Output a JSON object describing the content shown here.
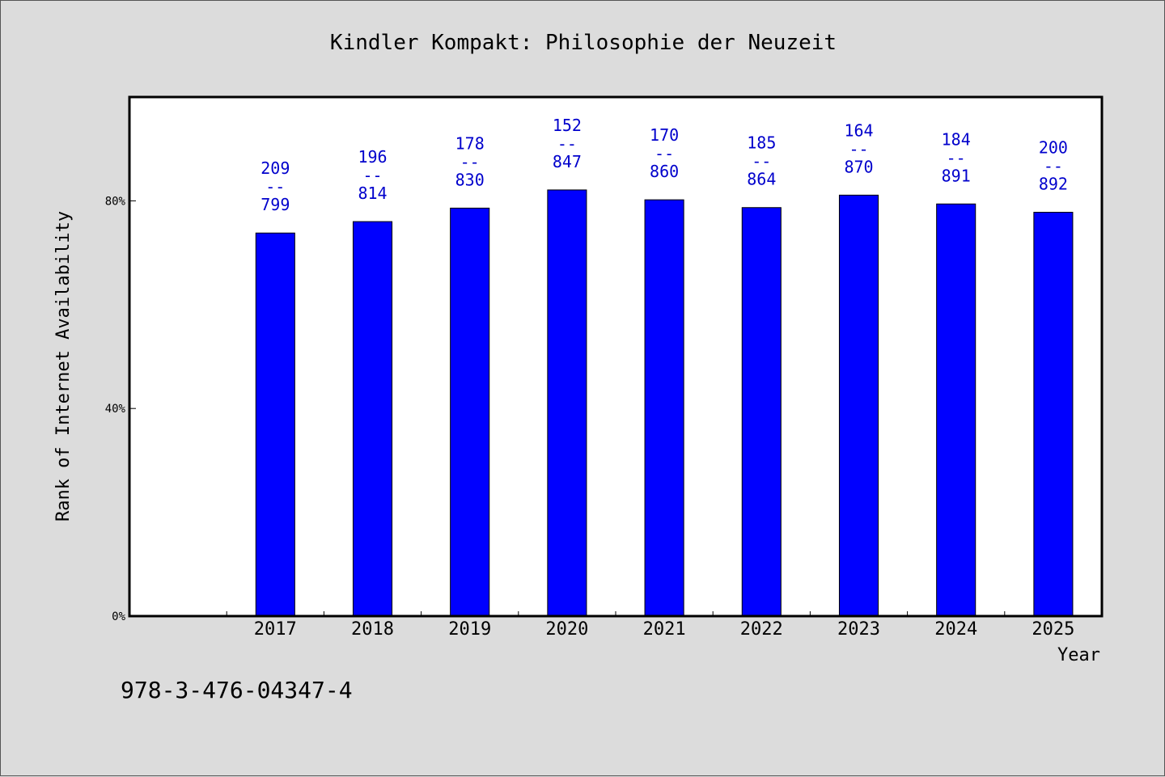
{
  "chart_data": {
    "type": "bar",
    "title": "Kindler Kompakt: Philosophie der Neuzeit",
    "xlabel": "Year",
    "ylabel": "Rank of Internet Availability",
    "categories": [
      "2017",
      "2018",
      "2019",
      "2020",
      "2021",
      "2022",
      "2023",
      "2024",
      "2025"
    ],
    "values": [
      73.8,
      76.0,
      78.6,
      82.1,
      80.2,
      78.7,
      81.1,
      79.4,
      77.8
    ],
    "value_unit": "%",
    "data_labels": [
      {
        "rank": "209",
        "separator": "--",
        "total": "799"
      },
      {
        "rank": "196",
        "separator": "--",
        "total": "814"
      },
      {
        "rank": "178",
        "separator": "--",
        "total": "830"
      },
      {
        "rank": "152",
        "separator": "--",
        "total": "847"
      },
      {
        "rank": "170",
        "separator": "--",
        "total": "860"
      },
      {
        "rank": "185",
        "separator": "--",
        "total": "864"
      },
      {
        "rank": "164",
        "separator": "--",
        "total": "870"
      },
      {
        "rank": "184",
        "separator": "--",
        "total": "891"
      },
      {
        "rank": "200",
        "separator": "--",
        "total": "892"
      }
    ],
    "ylim": [
      0,
      100
    ],
    "yticks": [
      0,
      40,
      80
    ],
    "ytick_labels": [
      "0%",
      "40%",
      "80%"
    ],
    "x_slots": 10,
    "grid": false,
    "bar_color": "#0000ff",
    "label_color": "#0000cc",
    "background": "#dcdcdc",
    "plot_background": "#ffffff"
  },
  "footer": {
    "isbn": "978-3-476-04347-4"
  }
}
